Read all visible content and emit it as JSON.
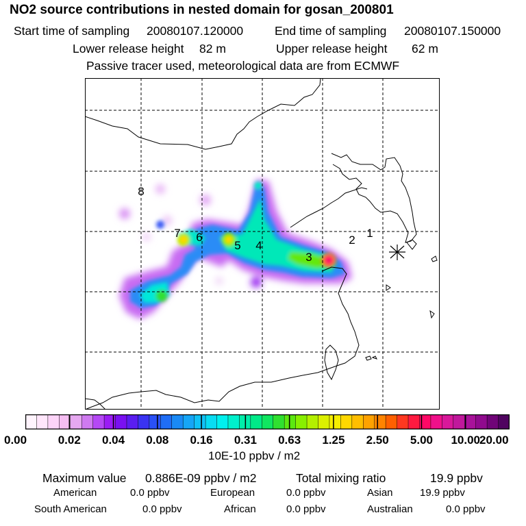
{
  "title": "NO2 source contributions in nested domain for gosan_200801",
  "header": {
    "start_label": "Start time of sampling",
    "start_value": "20080107.120000",
    "end_label": "End time of sampling",
    "end_value": "20080107.150000",
    "lower_label": "Lower release height",
    "lower_value": "82 m",
    "upper_label": "Upper release height",
    "upper_value": "62 m",
    "note": "Passive tracer used, meteorological data are from ECMWF"
  },
  "map": {
    "source_labels": [
      "1",
      "2",
      "3",
      "4",
      "5",
      "6",
      "7",
      "8"
    ],
    "receptor_marker": "asterisk-icon"
  },
  "colorbar": {
    "tick_labels": [
      "0.00",
      "0.02",
      "0.04",
      "0.08",
      "0.16",
      "0.31",
      "0.63",
      "1.25",
      "2.50",
      "5.00",
      "10.00",
      "20.00"
    ],
    "unit": "10E-10 ppbv / m2",
    "colors": [
      "#fff4fd",
      "#ffe6fb",
      "#fcd4f8",
      "#f5bdf2",
      "#e6a8f0",
      "#cf7af0",
      "#b548f5",
      "#9b1cf5",
      "#7a10f2",
      "#5a1ef0",
      "#3a33f2",
      "#2a50f6",
      "#1f6ef6",
      "#1a8af6",
      "#16a6f7",
      "#10c2f7",
      "#08dcf2",
      "#00f0ee",
      "#00f0cc",
      "#00eeaa",
      "#00ea88",
      "#10e660",
      "#30e030",
      "#5ce810",
      "#88ef00",
      "#b4f000",
      "#dcf000",
      "#f6ee00",
      "#ffd800",
      "#ffbe00",
      "#ffa200",
      "#ff8400",
      "#ff6000",
      "#ff3820",
      "#ff1a40",
      "#ff0866",
      "#f0108a",
      "#d8189a",
      "#c0189c",
      "#a8129a",
      "#900a8e",
      "#700478",
      "#500460"
    ]
  },
  "footer": {
    "max_label": "Maximum value",
    "max_value": "0.886E-09 ppbv / m2",
    "total_label": "Total mixing ratio",
    "total_value": "19.9 ppbv",
    "regions": [
      {
        "name": "American",
        "value": "0.0 ppbv"
      },
      {
        "name": "European",
        "value": "0.0 ppbv"
      },
      {
        "name": "Asian",
        "value": "19.9 ppbv"
      },
      {
        "name": "South American",
        "value": "0.0 ppbv"
      },
      {
        "name": "African",
        "value": "0.0 ppbv"
      },
      {
        "name": "Australian",
        "value": "0.0 ppbv"
      }
    ]
  }
}
